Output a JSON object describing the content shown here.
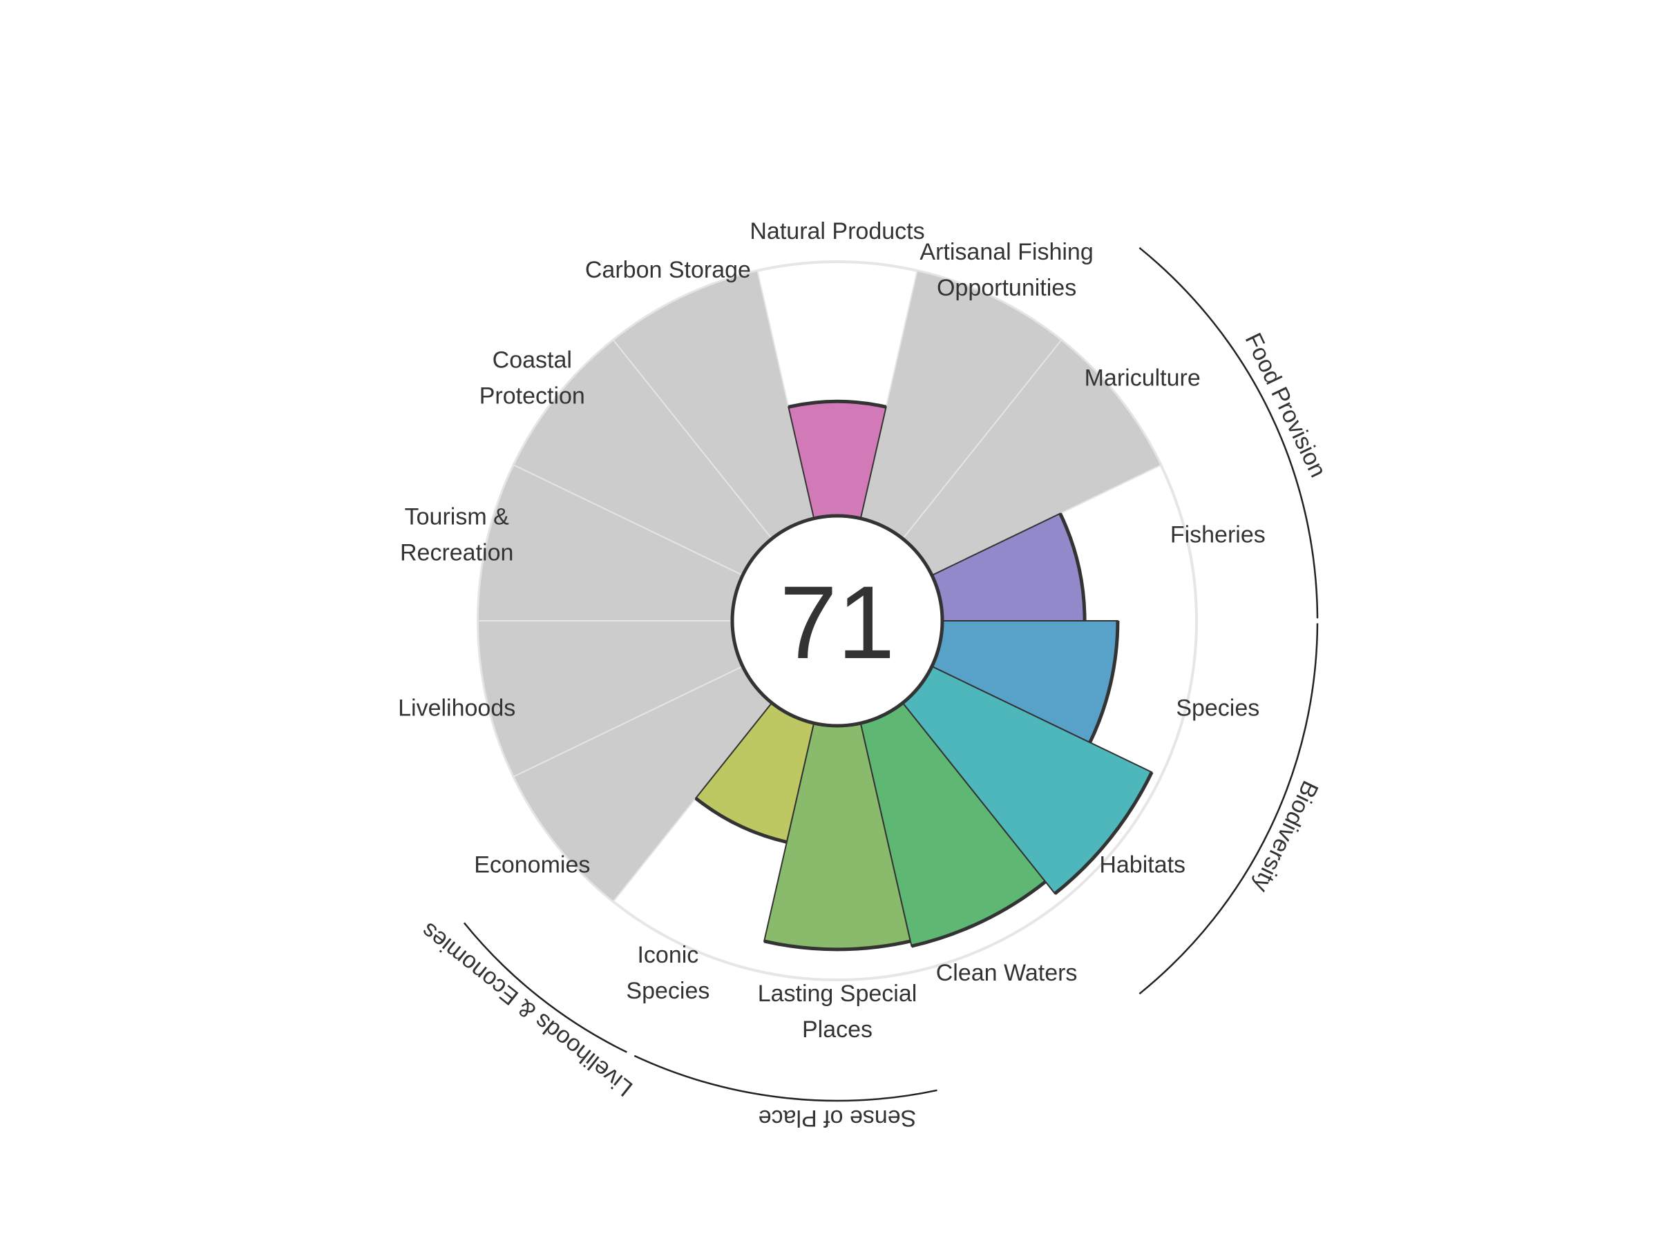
{
  "chart_data": {
    "type": "polar-bar",
    "title": "",
    "score": "71",
    "rmax": 100,
    "goals": [
      {
        "key": "fisheries",
        "label": [
          "Fisheries"
        ],
        "value": 56,
        "color": "#9189c9",
        "na": false
      },
      {
        "key": "mariculture",
        "label": [
          "Mariculture"
        ],
        "value": null,
        "color": "#cccccc",
        "na": true
      },
      {
        "key": "artisanal-fishing",
        "label": [
          "Artisanal Fishing",
          "Opportunities"
        ],
        "value": null,
        "color": "#cccccc",
        "na": true
      },
      {
        "key": "natural-products",
        "label": [
          "Natural Products"
        ],
        "value": 45,
        "color": "#d279b7",
        "na": false
      },
      {
        "key": "carbon-storage",
        "label": [
          "Carbon Storage"
        ],
        "value": null,
        "color": "#cccccc",
        "na": true
      },
      {
        "key": "coastal-protection",
        "label": [
          "Coastal",
          "Protection"
        ],
        "value": null,
        "color": "#cccccc",
        "na": true
      },
      {
        "key": "tourism-recreation",
        "label": [
          "Tourism &",
          "Recreation"
        ],
        "value": null,
        "color": "#cccccc",
        "na": true
      },
      {
        "key": "livelihoods",
        "label": [
          "Livelihoods"
        ],
        "value": null,
        "color": "#cccccc",
        "na": true
      },
      {
        "key": "economies",
        "label": [
          "Economies"
        ],
        "value": null,
        "color": "#cccccc",
        "na": true
      },
      {
        "key": "iconic-species",
        "label": [
          "Iconic",
          "Species"
        ],
        "value": 48,
        "color": "#bdc862",
        "na": false
      },
      {
        "key": "lasting-special-places",
        "label": [
          "Lasting Special",
          "Places"
        ],
        "value": 88,
        "color": "#8aba6b",
        "na": false
      },
      {
        "key": "clean-waters",
        "label": [
          "Clean Waters"
        ],
        "value": 90,
        "color": "#5eb873",
        "na": false
      },
      {
        "key": "habitats",
        "label": [
          "Habitats"
        ],
        "value": 96,
        "color": "#4eb7bc",
        "na": false
      },
      {
        "key": "species",
        "label": [
          "Species"
        ],
        "value": 69,
        "color": "#58a2c9",
        "na": false
      }
    ],
    "groups": [
      {
        "key": "food-provision",
        "label": "Food Provision"
      },
      {
        "key": "biodiversity",
        "label": "Biodiversity"
      },
      {
        "key": "sense-of-place",
        "label": "Sense of Place"
      },
      {
        "key": "livelihoods-economies",
        "label": "Livelihoods & Economies"
      }
    ]
  }
}
